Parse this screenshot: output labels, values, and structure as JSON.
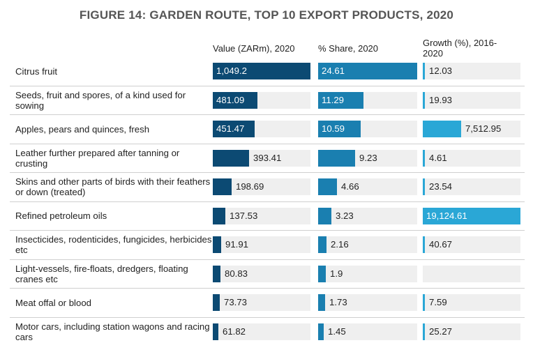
{
  "title": "FIGURE 14: GARDEN ROUTE, TOP 10 EXPORT PRODUCTS, 2020",
  "columns": [
    "Value (ZARm), 2020",
    "% Share, 2020",
    "Growth (%), 2016-\n2020"
  ],
  "colors": {
    "value": "#0c4a73",
    "share": "#1a7fb0",
    "growth": "#2aa7d6",
    "track": "#efefef"
  },
  "chart_data": {
    "type": "bar",
    "title": "FIGURE 14: GARDEN ROUTE, TOP 10 EXPORT PRODUCTS, 2020",
    "categories": [
      "Citrus fruit",
      "Seeds, fruit and spores, of a kind used for sowing",
      "Apples, pears and quinces, fresh",
      "Leather further prepared after tanning or crusting",
      "Skins and other parts of birds with their feathers or down (treated)",
      "Refined petroleum oils",
      "Insecticides, rodenticides, fungicides, herbicides etc",
      "Light-vessels, fire-floats, dredgers, floating cranes etc",
      "Meat offal or blood",
      "Motor cars, including station wagons and racing cars"
    ],
    "series": [
      {
        "name": "Value (ZARm), 2020",
        "values": [
          1049.2,
          481.09,
          451.47,
          393.41,
          198.69,
          137.53,
          91.91,
          80.83,
          73.73,
          61.82
        ],
        "labels": [
          "1,049.2",
          "481.09",
          "451.47",
          "393.41",
          "198.69",
          "137.53",
          "91.91",
          "80.83",
          "73.73",
          "61.82"
        ]
      },
      {
        "name": "% Share, 2020",
        "values": [
          24.61,
          11.29,
          10.59,
          9.23,
          4.66,
          3.23,
          2.16,
          1.9,
          1.73,
          1.45
        ],
        "labels": [
          "24.61",
          "11.29",
          "10.59",
          "9.23",
          "4.66",
          "3.23",
          "2.16",
          "1.9",
          "1.73",
          "1.45"
        ]
      },
      {
        "name": "Growth (%), 2016-2020",
        "values": [
          12.03,
          19.93,
          7512.95,
          4.61,
          23.54,
          19124.61,
          40.67,
          null,
          7.59,
          25.27
        ],
        "labels": [
          "12.03",
          "19.93",
          "7,512.95",
          "4.61",
          "23.54",
          "19,124.61",
          "40.67",
          "",
          "7.59",
          "25.27"
        ]
      }
    ]
  }
}
